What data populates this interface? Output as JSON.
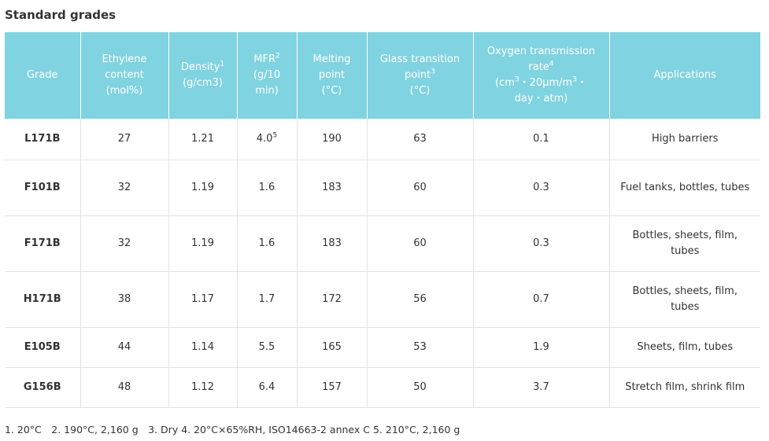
{
  "title": "Standard grades",
  "table": {
    "header": [
      [
        [
          "Grade"
        ]
      ],
      [
        [
          "Ethylene"
        ],
        [
          "content"
        ],
        [
          "(mol%)"
        ]
      ],
      [
        [
          "Density",
          {
            "sup": "1"
          }
        ],
        [
          "(g/cm3)"
        ]
      ],
      [
        [
          "MFR",
          {
            "sup": "2"
          }
        ],
        [
          "(g/10"
        ],
        [
          "min)"
        ]
      ],
      [
        [
          "Melting"
        ],
        [
          "point"
        ],
        [
          "(°C)"
        ]
      ],
      [
        [
          "Glass transition"
        ],
        [
          "point",
          {
            "sup": "3"
          }
        ],
        [
          "(°C)"
        ]
      ],
      [
        [
          "Oxygen transmission"
        ],
        [
          "rate",
          {
            "sup": "4"
          }
        ],
        [
          "(cm",
          {
            "sup": "3"
          },
          "・20μm/m",
          {
            "sup": "3"
          },
          "・"
        ],
        [
          "day・atm)"
        ]
      ],
      [
        [
          "Applications"
        ]
      ]
    ],
    "rows": [
      [
        "L171B",
        "27",
        "1.21",
        [
          "4.0",
          {
            "sup": "5"
          }
        ],
        "190",
        "63",
        "0.1",
        "High barriers"
      ],
      [
        "F101B",
        "32",
        "1.19",
        "1.6",
        "183",
        "60",
        "0.3",
        "Fuel tanks, bottles, tubes"
      ],
      [
        "F171B",
        "32",
        "1.19",
        "1.6",
        "183",
        "60",
        "0.3",
        "Bottles, sheets, film, tubes"
      ],
      [
        "H171B",
        "38",
        "1.17",
        "1.7",
        "172",
        "56",
        "0.7",
        "Bottles, sheets, film, tubes"
      ],
      [
        "E105B",
        "44",
        "1.14",
        "5.5",
        "165",
        "53",
        "1.9",
        "Sheets, film, tubes"
      ],
      [
        "G156B",
        "48",
        "1.12",
        "6.4",
        "157",
        "50",
        "3.7",
        "Stretch film, shrink film"
      ]
    ]
  },
  "footnote": "1. 20°C　2. 190°C, 2,160 g　3. Dry 4. 20°C×65%RH, ISO14663-2 annex C 5. 210°C, 2,160 g"
}
